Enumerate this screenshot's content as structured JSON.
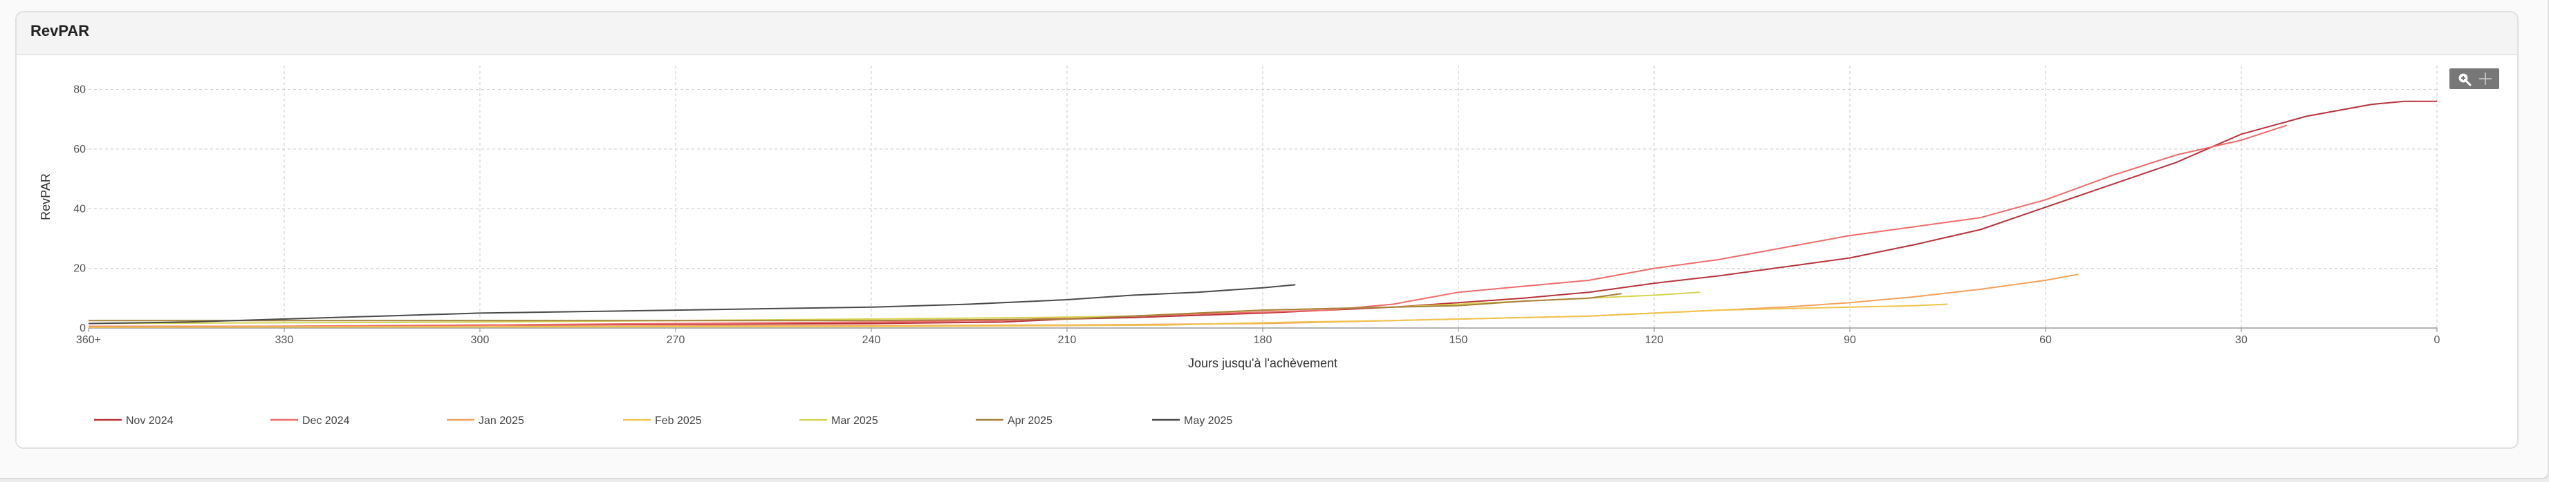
{
  "card": {
    "title": "RevPAR"
  },
  "toolbar": {
    "icons": [
      "zoom-in-icon",
      "pan-icon"
    ]
  },
  "chart_data": {
    "type": "line",
    "xlabel": "Jours jusqu'à l'achèvement",
    "ylabel": "RevPAR",
    "xlim": [
      360,
      0
    ],
    "ylim": [
      0,
      88
    ],
    "x_ticks": [
      {
        "value": 360,
        "label": "360+"
      },
      {
        "value": 330,
        "label": "330"
      },
      {
        "value": 300,
        "label": "300"
      },
      {
        "value": 270,
        "label": "270"
      },
      {
        "value": 240,
        "label": "240"
      },
      {
        "value": 210,
        "label": "210"
      },
      {
        "value": 180,
        "label": "180"
      },
      {
        "value": 150,
        "label": "150"
      },
      {
        "value": 120,
        "label": "120"
      },
      {
        "value": 90,
        "label": "90"
      },
      {
        "value": 60,
        "label": "60"
      },
      {
        "value": 30,
        "label": "30"
      },
      {
        "value": 0,
        "label": "0"
      }
    ],
    "y_ticks": [
      {
        "value": 0,
        "label": "0"
      },
      {
        "value": 20,
        "label": "20"
      },
      {
        "value": 40,
        "label": "40"
      },
      {
        "value": 60,
        "label": "60"
      },
      {
        "value": 80,
        "label": "80"
      }
    ],
    "grid": true,
    "legend_position": "bottom",
    "series": [
      {
        "name": "Nov 2024",
        "color": "#b8323b",
        "x": [
          360,
          330,
          300,
          270,
          240,
          220,
          210,
          200,
          180,
          170,
          160,
          150,
          140,
          130,
          120,
          110,
          100,
          90,
          80,
          70,
          60,
          50,
          40,
          30,
          20,
          10,
          5,
          0
        ],
        "y": [
          0.5,
          0.5,
          1,
          1.2,
          1.5,
          2,
          3,
          3.5,
          5,
          6,
          7,
          8.5,
          10,
          12,
          15,
          17.5,
          20.5,
          23.5,
          28,
          33,
          40.5,
          48,
          55.5,
          65,
          71,
          75,
          76,
          76
        ]
      },
      {
        "name": "Dec 2024",
        "color": "#ef6b6b",
        "x": [
          360,
          330,
          300,
          270,
          240,
          220,
          210,
          200,
          185,
          170,
          160,
          150,
          140,
          130,
          120,
          110,
          100,
          90,
          80,
          70,
          60,
          50,
          40,
          30,
          23
        ],
        "y": [
          0.5,
          0.6,
          1,
          1.5,
          2,
          2.5,
          3.5,
          4,
          5,
          6,
          8,
          12,
          14,
          16,
          20,
          23,
          27,
          31,
          34,
          37,
          43,
          51,
          58,
          63,
          68
        ]
      },
      {
        "name": "Jan 2025",
        "color": "#f4a15a",
        "x": [
          360,
          300,
          240,
          210,
          180,
          170,
          150,
          130,
          120,
          110,
          100,
          90,
          80,
          70,
          60,
          55
        ],
        "y": [
          0.3,
          0.5,
          0.8,
          1,
          1.5,
          2,
          3,
          4,
          5,
          6,
          7,
          8.5,
          10.5,
          13,
          16,
          18
        ]
      },
      {
        "name": "Feb 2025",
        "color": "#f0c44c",
        "x": [
          360,
          300,
          240,
          210,
          195,
          185,
          175,
          160,
          150,
          140,
          130,
          120,
          110,
          100,
          90,
          80,
          75
        ],
        "y": [
          0.3,
          0.4,
          0.5,
          0.8,
          1,
          1.5,
          2,
          2.5,
          3,
          3.5,
          4,
          5,
          6,
          6.5,
          7,
          7.5,
          8
        ]
      },
      {
        "name": "Mar 2025",
        "color": "#d7d54f",
        "x": [
          360,
          300,
          240,
          215,
          200,
          190,
          180,
          170,
          160,
          150,
          140,
          130,
          120,
          113
        ],
        "y": [
          1.5,
          2,
          3,
          3.5,
          4,
          5,
          6,
          6.5,
          7,
          8,
          9,
          10,
          11,
          12
        ]
      },
      {
        "name": "Apr 2025",
        "color": "#a7813b",
        "x": [
          360,
          330,
          300,
          270,
          240,
          210,
          200,
          190,
          180,
          170,
          160,
          150,
          140,
          130,
          125
        ],
        "y": [
          2.5,
          2.5,
          2.5,
          2.5,
          2.5,
          3,
          4,
          5,
          6,
          6.5,
          7,
          7.5,
          9,
          10,
          11.5
        ]
      },
      {
        "name": "May 2025",
        "color": "#4a4a4a",
        "x": [
          360,
          345,
          330,
          315,
          300,
          285,
          270,
          255,
          240,
          225,
          210,
          200,
          190,
          180,
          175
        ],
        "y": [
          1.5,
          2,
          3,
          4,
          5,
          5.5,
          6,
          6.5,
          7,
          8,
          9.5,
          11,
          12,
          13.5,
          14.5
        ]
      }
    ]
  }
}
